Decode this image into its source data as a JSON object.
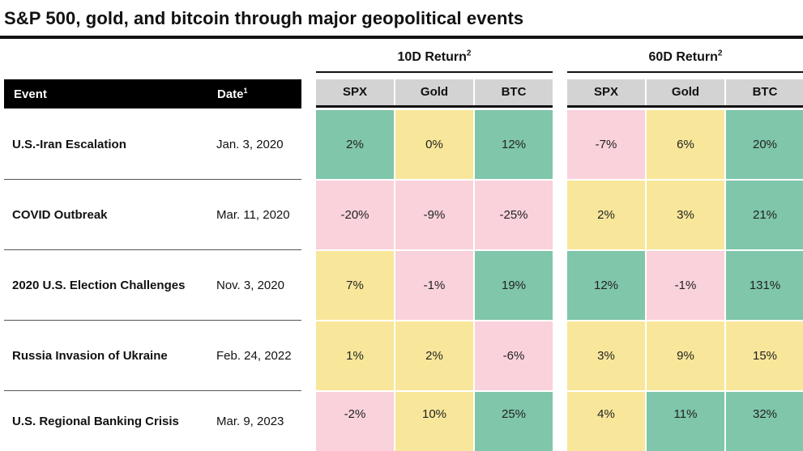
{
  "title": "S&P 500, gold, and bitcoin through major geopolitical events",
  "colors": {
    "positive": "#7fc6aa",
    "neutral": "#f8e79a",
    "negative": "#f9d2dc",
    "header_gray": "#d3d3d3",
    "header_black": "#000000"
  },
  "chart_data": {
    "type": "table",
    "title": "S&P 500, gold, and bitcoin through major geopolitical events",
    "headers": {
      "event": "Event",
      "date": "Date",
      "date_footnote": "1"
    },
    "groups": [
      {
        "label": "10D Return",
        "footnote": "2",
        "columns": [
          "SPX",
          "Gold",
          "BTC"
        ]
      },
      {
        "label": "60D Return",
        "footnote": "2",
        "columns": [
          "SPX",
          "Gold",
          "BTC"
        ]
      }
    ],
    "rows": [
      {
        "event": "U.S.-Iran Escalation",
        "date": "Jan. 3, 2020",
        "values": [
          {
            "text": "2%",
            "tone": "positive"
          },
          {
            "text": "0%",
            "tone": "neutral"
          },
          {
            "text": "12%",
            "tone": "positive"
          },
          {
            "text": "-7%",
            "tone": "negative"
          },
          {
            "text": "6%",
            "tone": "neutral"
          },
          {
            "text": "20%",
            "tone": "positive"
          }
        ]
      },
      {
        "event": "COVID Outbreak",
        "date": "Mar. 11, 2020",
        "values": [
          {
            "text": "-20%",
            "tone": "negative"
          },
          {
            "text": "-9%",
            "tone": "negative"
          },
          {
            "text": "-25%",
            "tone": "negative"
          },
          {
            "text": "2%",
            "tone": "neutral"
          },
          {
            "text": "3%",
            "tone": "neutral"
          },
          {
            "text": "21%",
            "tone": "positive"
          }
        ]
      },
      {
        "event": "2020 U.S. Election Challenges",
        "date": "Nov. 3, 2020",
        "values": [
          {
            "text": "7%",
            "tone": "neutral"
          },
          {
            "text": "-1%",
            "tone": "negative"
          },
          {
            "text": "19%",
            "tone": "positive"
          },
          {
            "text": "12%",
            "tone": "positive"
          },
          {
            "text": "-1%",
            "tone": "negative"
          },
          {
            "text": "131%",
            "tone": "positive"
          }
        ]
      },
      {
        "event": "Russia Invasion of Ukraine",
        "date": "Feb. 24, 2022",
        "values": [
          {
            "text": "1%",
            "tone": "neutral"
          },
          {
            "text": "2%",
            "tone": "neutral"
          },
          {
            "text": "-6%",
            "tone": "negative"
          },
          {
            "text": "3%",
            "tone": "neutral"
          },
          {
            "text": "9%",
            "tone": "neutral"
          },
          {
            "text": "15%",
            "tone": "neutral"
          }
        ]
      },
      {
        "event": "U.S. Regional Banking Crisis",
        "date": "Mar. 9, 2023",
        "values": [
          {
            "text": "-2%",
            "tone": "negative"
          },
          {
            "text": "10%",
            "tone": "neutral"
          },
          {
            "text": "25%",
            "tone": "positive"
          },
          {
            "text": "4%",
            "tone": "neutral"
          },
          {
            "text": "11%",
            "tone": "positive"
          },
          {
            "text": "32%",
            "tone": "positive"
          }
        ]
      }
    ]
  }
}
